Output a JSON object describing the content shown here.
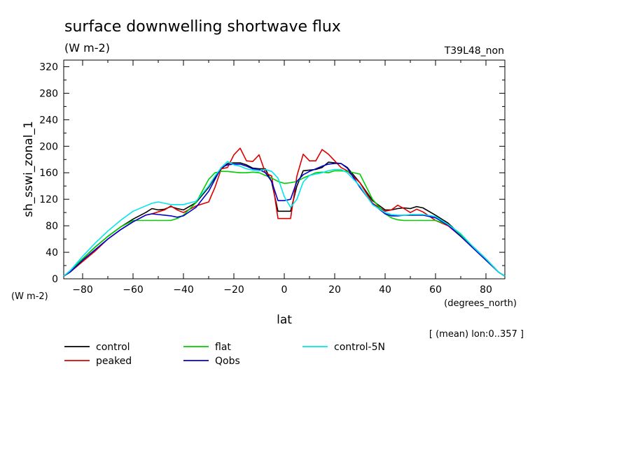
{
  "chart_data": {
    "type": "line",
    "title": "surface downwelling shortwave flux",
    "subtitle": "(W m-2)",
    "run_label": "T39L48_non",
    "ylabel": "sh_sswi_zonal_1",
    "y_units": "(W m-2)",
    "xlabel": "lat",
    "x_units": "(degrees_north)",
    "footnote": "[ (mean) lon:0..357 ]",
    "xlim": [
      -87.5,
      87.5
    ],
    "ylim": [
      0,
      330
    ],
    "xticks": [
      -80,
      -60,
      -40,
      -20,
      0,
      20,
      40,
      60,
      80
    ],
    "yticks": [
      0,
      40,
      80,
      120,
      160,
      200,
      240,
      280,
      320
    ],
    "legend_position": "bottom",
    "grid": false,
    "x": [
      -87.5,
      -85,
      -80,
      -75,
      -70,
      -65,
      -60,
      -55,
      -52.5,
      -50,
      -47.5,
      -45,
      -42.5,
      -40,
      -35,
      -30,
      -27.5,
      -25,
      -22.5,
      -20,
      -17.5,
      -15,
      -12.5,
      -10,
      -7.5,
      -5,
      -2.5,
      0,
      2.5,
      5,
      7.5,
      10,
      12.5,
      15,
      17.5,
      20,
      22.5,
      25,
      30,
      35,
      40,
      42.5,
      45,
      47.5,
      50,
      52.5,
      55,
      60,
      65,
      70,
      75,
      80,
      85,
      87.5
    ],
    "series": [
      {
        "name": "control",
        "color": "#000000",
        "values": [
          4,
          12,
          30,
          48,
          64,
          78,
          90,
          100,
          106,
          104,
          105,
          109,
          106,
          104,
          115,
          138,
          153,
          166,
          174,
          175,
          175,
          172,
          167,
          166,
          166,
          146,
          102,
          102,
          102,
          140,
          163,
          164,
          165,
          168,
          176,
          175,
          174,
          168,
          145,
          118,
          104,
          104,
          106,
          107,
          106,
          109,
          107,
          96,
          84,
          66,
          48,
          30,
          10,
          4
        ]
      },
      {
        "name": "peaked",
        "color": "#dd0000",
        "values": [
          4,
          10,
          26,
          42,
          60,
          74,
          86,
          96,
          98,
          101,
          104,
          110,
          104,
          100,
          110,
          116,
          138,
          166,
          168,
          187,
          197,
          178,
          177,
          187,
          160,
          155,
          91,
          91,
          91,
          155,
          188,
          178,
          178,
          195,
          188,
          178,
          168,
          163,
          145,
          114,
          102,
          104,
          111,
          106,
          100,
          105,
          101,
          88,
          80,
          64,
          48,
          30,
          10,
          4
        ]
      },
      {
        "name": "flat",
        "color": "#00cc00",
        "values": [
          4,
          12,
          30,
          48,
          64,
          78,
          88,
          88,
          88,
          88,
          88,
          88,
          91,
          96,
          115,
          150,
          160,
          162,
          162,
          161,
          160,
          160,
          161,
          160,
          156,
          152,
          147,
          144,
          145,
          147,
          152,
          156,
          160,
          161,
          160,
          163,
          163,
          162,
          158,
          120,
          98,
          92,
          89,
          88,
          88,
          88,
          88,
          88,
          82,
          66,
          48,
          30,
          10,
          4
        ]
      },
      {
        "name": "Qobs",
        "color": "#0000cc",
        "values": [
          4,
          10,
          28,
          44,
          60,
          74,
          86,
          96,
          98,
          97,
          96,
          95,
          93,
          95,
          108,
          132,
          150,
          168,
          172,
          173,
          173,
          170,
          166,
          165,
          160,
          147,
          118,
          118,
          120,
          147,
          157,
          162,
          166,
          170,
          173,
          174,
          174,
          167,
          138,
          113,
          98,
          95,
          95,
          96,
          96,
          96,
          96,
          92,
          81,
          64,
          46,
          28,
          10,
          4
        ]
      },
      {
        "name": "control-5N",
        "color": "#00e5ee",
        "values": [
          4,
          12,
          34,
          54,
          72,
          88,
          102,
          110,
          114,
          116,
          114,
          112,
          112,
          112,
          117,
          140,
          155,
          168,
          177,
          172,
          170,
          166,
          164,
          163,
          165,
          162,
          152,
          124,
          108,
          120,
          146,
          156,
          158,
          160,
          163,
          165,
          165,
          160,
          140,
          112,
          100,
          97,
          96,
          96,
          97,
          97,
          97,
          94,
          82,
          68,
          48,
          30,
          10,
          4
        ]
      }
    ]
  }
}
